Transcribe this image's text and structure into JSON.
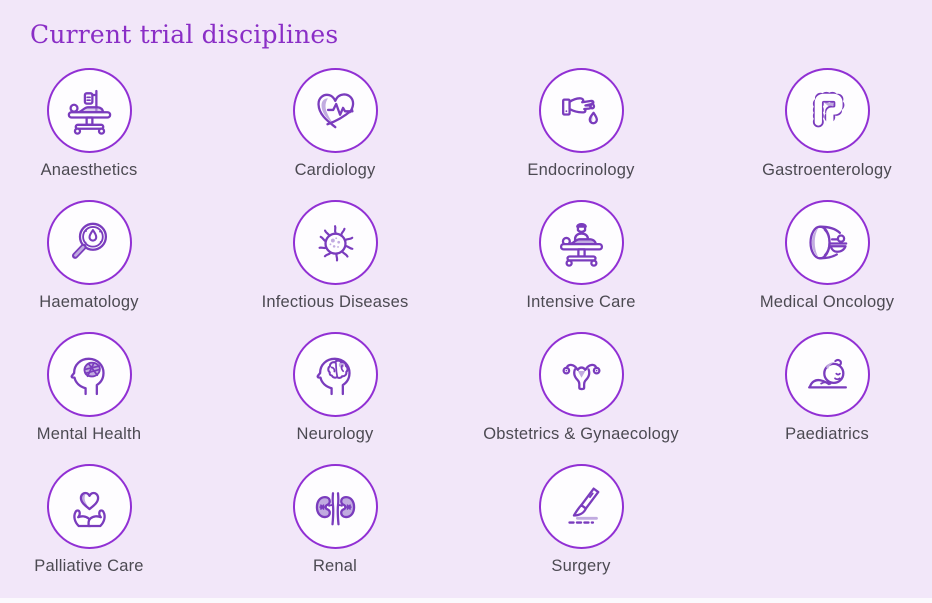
{
  "page": {
    "title": "Current trial disciplines",
    "background_color": "#F2E7F9",
    "title_color": "#8A2EC6",
    "label_color": "#4C4A52",
    "circle_border_color": "#9130D4",
    "icon_stroke_color": "#7A3CBD",
    "icon_accent_color": "#C1ABE0"
  },
  "disciplines": [
    {
      "label": "Anaesthetics",
      "icon": "operating-table-icon"
    },
    {
      "label": "Cardiology",
      "icon": "heart-ecg-icon"
    },
    {
      "label": "Endocrinology",
      "icon": "hand-blood-drop-icon"
    },
    {
      "label": "Gastroenterology",
      "icon": "intestine-icon"
    },
    {
      "label": "Haematology",
      "icon": "magnifier-blood-icon"
    },
    {
      "label": "Infectious Diseases",
      "icon": "virus-icon"
    },
    {
      "label": "Intensive Care",
      "icon": "hospital-bed-icon"
    },
    {
      "label": "Medical Oncology",
      "icon": "ct-scanner-icon"
    },
    {
      "label": "Mental Health",
      "icon": "head-tangled-brain-icon"
    },
    {
      "label": "Neurology",
      "icon": "head-brain-icon"
    },
    {
      "label": "Obstetrics & Gynaecology",
      "icon": "uterus-icon"
    },
    {
      "label": "Paediatrics",
      "icon": "sleeping-baby-icon"
    },
    {
      "label": "Palliative Care",
      "icon": "hands-heart-icon"
    },
    {
      "label": "Renal",
      "icon": "kidneys-icon"
    },
    {
      "label": "Surgery",
      "icon": "scalpel-icon"
    }
  ]
}
